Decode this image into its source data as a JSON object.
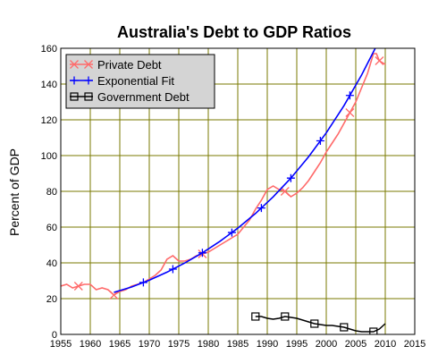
{
  "chart_data": {
    "type": "line",
    "title": "Australia's Debt to GDP Ratios",
    "xlabel": "",
    "ylabel": "Percent of GDP",
    "xlim": [
      1955,
      2015
    ],
    "ylim": [
      0,
      160
    ],
    "x_ticks": [
      1955,
      1960,
      1965,
      1970,
      1975,
      1980,
      1985,
      1990,
      1995,
      2000,
      2005,
      2010,
      2015
    ],
    "y_ticks": [
      0,
      20,
      40,
      60,
      80,
      100,
      120,
      140,
      160
    ],
    "grid": true,
    "grid_color": "#7a7a00",
    "plot_background": "#ffffff",
    "legend_position": "top-left",
    "series": [
      {
        "name": "Private Debt",
        "color": "#ff6a6a",
        "marker": "x",
        "x": [
          1955,
          1956,
          1957,
          1958,
          1959,
          1960,
          1961,
          1962,
          1963,
          1964,
          1965,
          1966,
          1967,
          1968,
          1969,
          1970,
          1971,
          1972,
          1973,
          1974,
          1975,
          1976,
          1977,
          1978,
          1979,
          1980,
          1981,
          1982,
          1983,
          1984,
          1985,
          1986,
          1987,
          1988,
          1989,
          1990,
          1991,
          1992,
          1993,
          1994,
          1995,
          1996,
          1997,
          1998,
          1999,
          2000,
          2001,
          2002,
          2003,
          2004,
          2005,
          2006,
          2007,
          2008,
          2008.5,
          2009,
          2010
        ],
        "values": [
          27,
          28,
          26,
          27,
          28,
          28,
          25,
          26,
          25,
          22,
          24,
          25,
          27,
          28,
          29,
          31,
          33,
          36,
          42,
          44,
          41,
          41,
          42,
          44,
          45,
          46,
          48,
          50,
          52,
          54,
          56,
          60,
          64,
          70,
          75,
          81,
          83,
          81,
          80,
          77,
          79,
          82,
          86,
          91,
          96,
          102,
          107,
          112,
          118,
          124,
          130,
          138,
          146,
          157,
          157,
          153,
          151
        ],
        "marker_x": [
          1958,
          1964,
          1979,
          1993,
          2004,
          2009
        ]
      },
      {
        "name": "Exponential Fit",
        "color": "#0000ff",
        "marker": "+",
        "growth_per_year": 0.06,
        "x": [
          1964,
          1967,
          1970,
          1973,
          1976,
          1979,
          1982,
          1985,
          1988,
          1991,
          1994,
          1997,
          2000,
          2003,
          2006,
          2009,
          2010.5
        ],
        "values": [
          23.5,
          26.5,
          30.3,
          34.8,
          39.9,
          45.6,
          52.1,
          59.4,
          67.6,
          76.9,
          87.4,
          99.3,
          112.7,
          127.9,
          145.1,
          164.5,
          175.3
        ],
        "marker_x": [
          1969,
          1974,
          1979,
          1984,
          1989,
          1994,
          1999,
          2004,
          2009
        ]
      },
      {
        "name": "Government Debt",
        "color": "#000000",
        "marker": "square",
        "x": [
          1988,
          1989,
          1990,
          1991,
          1992,
          1993,
          1994,
          1995,
          1996,
          1997,
          1998,
          1999,
          2000,
          2001,
          2002,
          2003,
          2004,
          2005,
          2006,
          2007,
          2008,
          2009,
          2010
        ],
        "values": [
          10,
          10,
          9,
          8.5,
          9,
          10,
          9.5,
          9,
          8,
          7,
          6,
          5.5,
          5,
          5,
          4.5,
          4,
          3,
          2,
          1.5,
          1.5,
          1.5,
          3,
          6
        ],
        "marker_x": [
          1988,
          1993,
          1998,
          2003,
          2008
        ]
      }
    ]
  }
}
